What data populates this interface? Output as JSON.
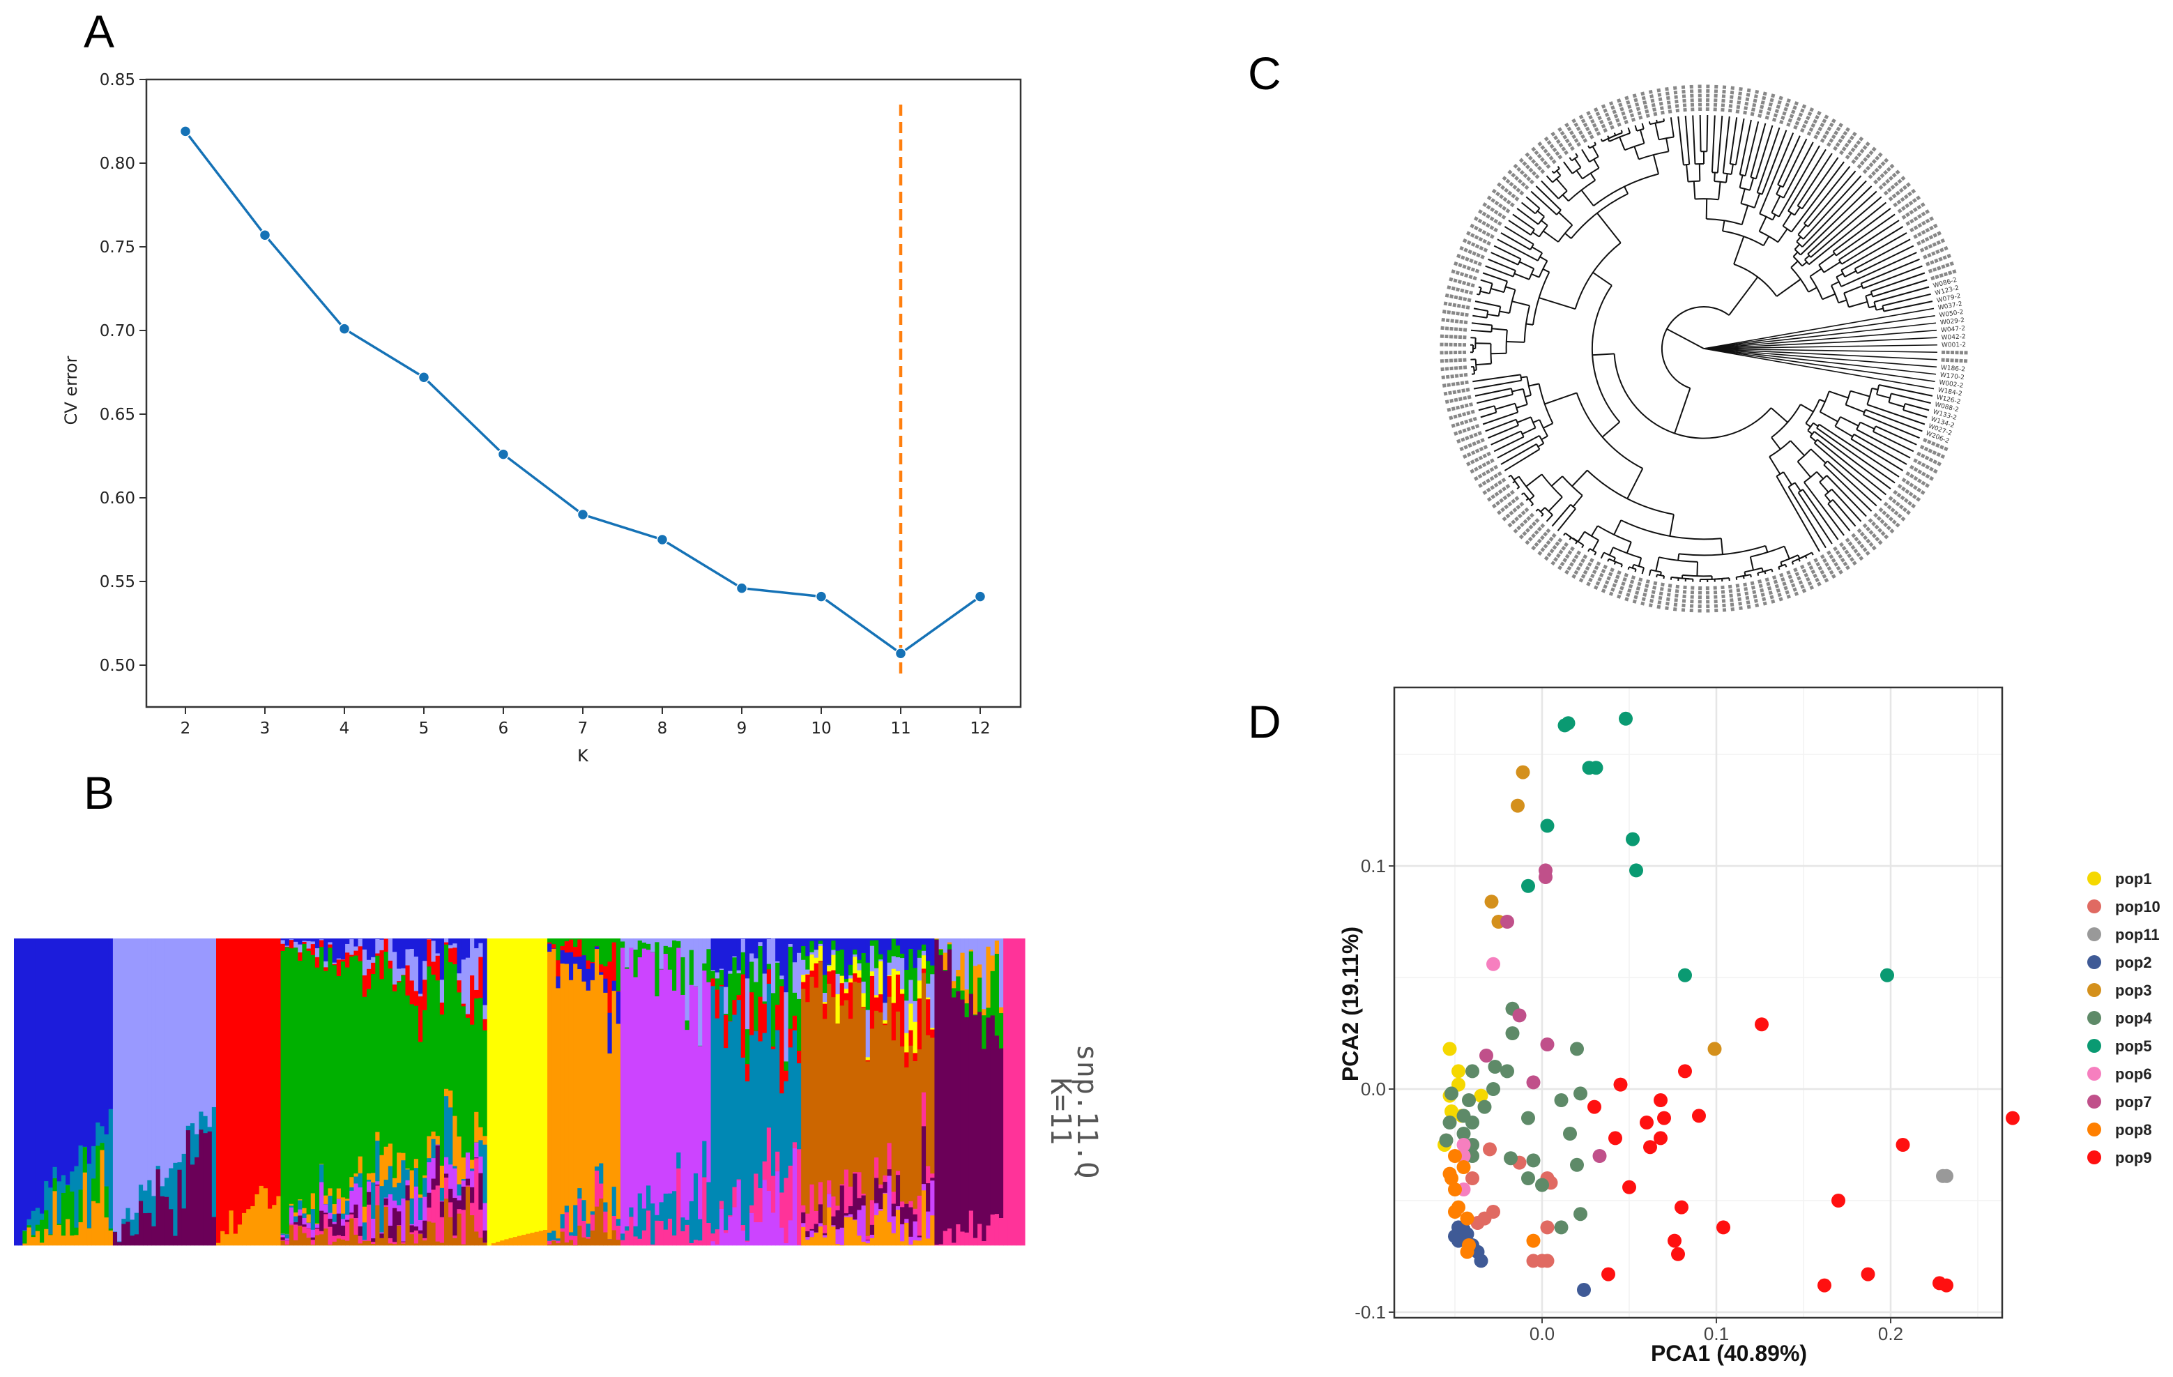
{
  "panels": {
    "a": "A",
    "b": "B",
    "c": "C",
    "d": "D"
  },
  "chart_data": [
    {
      "type": "line",
      "panel": "A",
      "xlabel": "K",
      "ylabel": "CV error",
      "x": [
        2,
        3,
        4,
        5,
        6,
        7,
        8,
        9,
        10,
        11,
        12
      ],
      "y": [
        0.819,
        0.757,
        0.701,
        0.672,
        0.626,
        0.59,
        0.575,
        0.546,
        0.541,
        0.507,
        0.541
      ],
      "xticks": [
        "2",
        "3",
        "4",
        "5",
        "6",
        "7",
        "8",
        "9",
        "10",
        "11",
        "12"
      ],
      "yticks": [
        "0.50",
        "0.55",
        "0.60",
        "0.65",
        "0.70",
        "0.75",
        "0.80",
        "0.85"
      ],
      "ylim": [
        0.475,
        0.85
      ],
      "xlim": [
        1.5,
        12.5
      ],
      "best_k_marker": {
        "x": 11,
        "y_from": 0.493,
        "y_to": 0.835,
        "style": "dashed",
        "color": "#ff7f0e"
      },
      "line_color": "#1572b6",
      "grid": false
    },
    {
      "type": "bar",
      "panel": "B",
      "subtype": "stacked-admixture",
      "label_lines": [
        "snp.11.Q",
        "K=11"
      ],
      "clusters": {
        "blue": "#1c1cdb",
        "lavender": "#9999ff",
        "red": "#ff0000",
        "green": "#00b000",
        "yellow": "#ffff00",
        "orange": "#ff9900",
        "magenta": "#cc44ff",
        "teal": "#0088b4",
        "brown": "#cc6600",
        "purple": "#6b0058",
        "pink": "#ff3399"
      },
      "groups": [
        {
          "main": "blue",
          "n": 23,
          "main_range": [
            1.0,
            0.6
          ],
          "top": [],
          "bottom": [
            "teal",
            "green",
            "orange"
          ]
        },
        {
          "main": "lavender",
          "n": 24,
          "main_range": [
            1.0,
            0.55
          ],
          "top": [],
          "bottom": [
            "teal",
            "purple"
          ]
        },
        {
          "main": "red",
          "n": 15,
          "main_range": [
            1.0,
            0.8
          ],
          "top": [],
          "bottom": [
            "orange"
          ]
        },
        {
          "main": "green",
          "n": 48,
          "main_range": [
            0.9,
            0.4
          ],
          "top": [
            "blue",
            "lavender",
            "red"
          ],
          "bottom": [
            "orange",
            "teal",
            "magenta",
            "purple",
            "pink",
            "brown"
          ]
        },
        {
          "main": "yellow",
          "n": 14,
          "main_range": [
            1.0,
            0.95
          ],
          "top": [],
          "bottom": [
            "orange"
          ]
        },
        {
          "main": "orange",
          "n": 17,
          "main_range": [
            0.9,
            0.6
          ],
          "top": [
            "green",
            "red",
            "blue"
          ],
          "bottom": [
            "teal",
            "pink",
            "brown"
          ]
        },
        {
          "main": "magenta",
          "n": 21,
          "main_range": [
            0.9,
            0.6
          ],
          "top": [
            "lavender",
            "green"
          ],
          "bottom": [
            "teal",
            "pink"
          ]
        },
        {
          "main": "teal",
          "n": 21,
          "main_range": [
            0.75,
            0.3
          ],
          "top": [
            "blue",
            "lavender",
            "green",
            "red"
          ],
          "bottom": [
            "pink",
            "magenta"
          ]
        },
        {
          "main": "brown",
          "n": 31,
          "main_range": [
            0.75,
            0.4
          ],
          "top": [
            "blue",
            "green",
            "lavender",
            "yellow",
            "red"
          ],
          "bottom": [
            "pink",
            "purple",
            "magenta",
            "orange"
          ]
        },
        {
          "main": "purple",
          "n": 16,
          "main_range": [
            0.95,
            0.6
          ],
          "top": [
            "lavender",
            "orange",
            "green"
          ],
          "bottom": [
            "pink"
          ]
        },
        {
          "main": "pink",
          "n": 5,
          "main_range": [
            1.0,
            1.0
          ],
          "top": [],
          "bottom": []
        }
      ]
    },
    {
      "type": "tree",
      "panel": "C",
      "layout": "circular",
      "n_leaves": 200,
      "readable_leaves_upper": [
        "W001-2",
        "W042-2",
        "W047-2",
        "W029-2",
        "W050-2",
        "W037-2",
        "W079-2",
        "W123-2",
        "W086-2"
      ],
      "readable_leaves_lower": [
        "W186-2",
        "W170-2",
        "W002-2",
        "W184-2",
        "W126-2",
        "W088-2",
        "W133-2",
        "W134-2",
        "W027-2",
        "W206-2"
      ]
    },
    {
      "type": "scatter",
      "panel": "D",
      "xlabel": "PCA1 (40.89%)",
      "ylabel": "PCA2 (19.11%)",
      "xlim": [
        -0.085,
        0.264
      ],
      "ylim": [
        -0.1025,
        0.18
      ],
      "xticks": [
        {
          "v": 0.0,
          "label": "0.0"
        },
        {
          "v": 0.1,
          "label": "0.1"
        },
        {
          "v": 0.2,
          "label": "0.2"
        }
      ],
      "yticks": [
        {
          "v": -0.1,
          "label": "-0.1"
        },
        {
          "v": 0.0,
          "label": "0.0"
        },
        {
          "v": 0.1,
          "label": "0.1"
        }
      ],
      "grid": true,
      "legend_position": "right",
      "series": [
        {
          "name": "pop1",
          "color": "#f5d800",
          "points": [
            [
              -0.053,
              0.018
            ],
            [
              -0.048,
              0.008
            ],
            [
              -0.048,
              0.002
            ],
            [
              -0.053,
              -0.003
            ],
            [
              -0.052,
              -0.01
            ],
            [
              -0.046,
              -0.012
            ],
            [
              -0.035,
              -0.003
            ],
            [
              -0.056,
              -0.025
            ]
          ]
        },
        {
          "name": "pop10",
          "color": "#e06a62",
          "points": [
            [
              -0.03,
              -0.027
            ],
            [
              -0.013,
              -0.033
            ],
            [
              0.003,
              -0.04
            ],
            [
              0.005,
              -0.042
            ],
            [
              -0.028,
              -0.055
            ],
            [
              -0.033,
              -0.058
            ],
            [
              -0.037,
              -0.06
            ],
            [
              0.003,
              -0.062
            ],
            [
              -0.005,
              -0.077
            ],
            [
              0.0,
              -0.077
            ],
            [
              0.003,
              -0.077
            ],
            [
              -0.055,
              -0.023
            ],
            [
              -0.04,
              -0.04
            ]
          ]
        },
        {
          "name": "pop11",
          "color": "#999999",
          "points": [
            [
              0.23,
              -0.039
            ],
            [
              0.232,
              -0.039
            ]
          ]
        },
        {
          "name": "pop2",
          "color": "#3f5a96",
          "points": [
            [
              -0.048,
              -0.062
            ],
            [
              -0.05,
              -0.066
            ],
            [
              -0.045,
              -0.063
            ],
            [
              -0.043,
              -0.065
            ],
            [
              -0.04,
              -0.07
            ],
            [
              -0.037,
              -0.073
            ],
            [
              -0.035,
              -0.077
            ],
            [
              0.024,
              -0.09
            ],
            [
              -0.045,
              -0.066
            ],
            [
              -0.048,
              -0.068
            ]
          ]
        },
        {
          "name": "pop3",
          "color": "#d4901c",
          "points": [
            [
              -0.011,
              0.142
            ],
            [
              -0.014,
              0.127
            ],
            [
              -0.029,
              0.084
            ],
            [
              -0.025,
              0.075
            ],
            [
              0.099,
              0.018
            ]
          ]
        },
        {
          "name": "pop4",
          "color": "#5e8a68",
          "points": [
            [
              -0.017,
              0.036
            ],
            [
              -0.017,
              0.025
            ],
            [
              -0.04,
              0.008
            ],
            [
              -0.027,
              0.01
            ],
            [
              -0.02,
              0.008
            ],
            [
              -0.028,
              0.0
            ],
            [
              0.02,
              0.018
            ],
            [
              -0.052,
              -0.002
            ],
            [
              -0.042,
              -0.005
            ],
            [
              -0.045,
              -0.012
            ],
            [
              -0.04,
              -0.015
            ],
            [
              -0.045,
              -0.02
            ],
            [
              -0.053,
              -0.015
            ],
            [
              -0.055,
              -0.023
            ],
            [
              -0.04,
              -0.025
            ],
            [
              -0.043,
              -0.028
            ],
            [
              -0.033,
              -0.008
            ],
            [
              -0.008,
              -0.013
            ],
            [
              0.022,
              -0.002
            ],
            [
              0.011,
              -0.005
            ],
            [
              0.016,
              -0.02
            ],
            [
              0.02,
              -0.034
            ],
            [
              -0.018,
              -0.031
            ],
            [
              -0.005,
              -0.032
            ],
            [
              -0.008,
              -0.04
            ],
            [
              0.0,
              -0.043
            ],
            [
              -0.04,
              -0.03
            ],
            [
              0.022,
              -0.056
            ],
            [
              0.011,
              -0.062
            ]
          ]
        },
        {
          "name": "pop5",
          "color": "#0a9a72",
          "points": [
            [
              0.013,
              0.163
            ],
            [
              0.015,
              0.164
            ],
            [
              0.048,
              0.166
            ],
            [
              0.027,
              0.144
            ],
            [
              0.031,
              0.144
            ],
            [
              0.003,
              0.118
            ],
            [
              0.052,
              0.112
            ],
            [
              0.054,
              0.098
            ],
            [
              -0.008,
              0.091
            ],
            [
              0.082,
              0.051
            ],
            [
              0.198,
              0.051
            ]
          ]
        },
        {
          "name": "pop6",
          "color": "#f67fbf",
          "points": [
            [
              -0.028,
              0.056
            ],
            [
              -0.045,
              -0.025
            ],
            [
              -0.045,
              -0.03
            ],
            [
              -0.045,
              -0.045
            ]
          ]
        },
        {
          "name": "pop7",
          "color": "#c0508a",
          "points": [
            [
              0.002,
              0.098
            ],
            [
              0.002,
              0.095
            ],
            [
              -0.02,
              0.075
            ],
            [
              -0.013,
              0.033
            ],
            [
              0.003,
              0.02
            ],
            [
              -0.032,
              0.015
            ],
            [
              -0.005,
              0.003
            ],
            [
              0.033,
              -0.03
            ]
          ]
        },
        {
          "name": "pop8",
          "color": "#ff7f00",
          "points": [
            [
              -0.05,
              -0.03
            ],
            [
              -0.052,
              -0.04
            ],
            [
              -0.05,
              -0.045
            ],
            [
              -0.053,
              -0.038
            ],
            [
              -0.048,
              -0.053
            ],
            [
              -0.05,
              -0.055
            ],
            [
              -0.043,
              -0.058
            ],
            [
              -0.042,
              -0.07
            ],
            [
              -0.043,
              -0.073
            ],
            [
              -0.005,
              -0.068
            ],
            [
              -0.045,
              -0.035
            ]
          ]
        },
        {
          "name": "pop9",
          "color": "#ff1010",
          "points": [
            [
              0.126,
              0.029
            ],
            [
              0.082,
              0.008
            ],
            [
              0.045,
              0.002
            ],
            [
              0.03,
              -0.008
            ],
            [
              0.068,
              -0.005
            ],
            [
              0.06,
              -0.015
            ],
            [
              0.07,
              -0.013
            ],
            [
              0.09,
              -0.012
            ],
            [
              0.042,
              -0.022
            ],
            [
              0.062,
              -0.026
            ],
            [
              0.068,
              -0.022
            ],
            [
              0.05,
              -0.044
            ],
            [
              0.08,
              -0.053
            ],
            [
              0.076,
              -0.068
            ],
            [
              0.078,
              -0.074
            ],
            [
              0.104,
              -0.062
            ],
            [
              0.038,
              -0.083
            ],
            [
              0.17,
              -0.05
            ],
            [
              0.207,
              -0.025
            ],
            [
              0.27,
              -0.013
            ],
            [
              0.162,
              -0.088
            ],
            [
              0.187,
              -0.083
            ],
            [
              0.228,
              -0.087
            ],
            [
              0.232,
              -0.088
            ]
          ]
        }
      ]
    }
  ]
}
